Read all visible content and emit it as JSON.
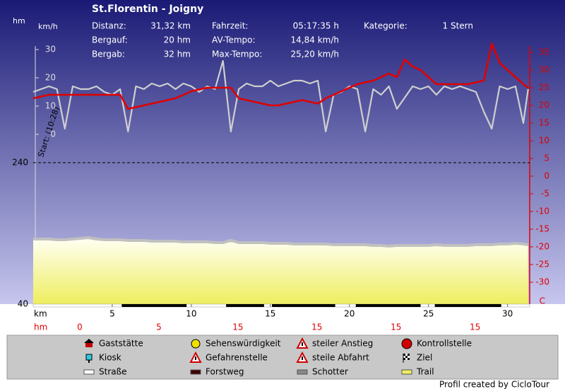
{
  "chart_data": {
    "type": "line",
    "title": "St.Florentin - Joigny",
    "stats": [
      [
        "Distanz:",
        "31,32 km"
      ],
      [
        "Fahrzeit:",
        "05:17:35 h"
      ],
      [
        "Kategorie:",
        "1 Stern"
      ],
      [
        "Bergauf:",
        "20 hm"
      ],
      [
        "AV-Tempo:",
        "14,84 km/h"
      ],
      [
        "Bergab:",
        "32 hm"
      ],
      [
        "Max-Tempo:",
        "25,20 km/h"
      ]
    ],
    "start_label": "Start: (10:28)",
    "x_label": "km",
    "xlim": [
      0,
      31.4
    ],
    "xticks": [
      5,
      10,
      15,
      20,
      25,
      30
    ],
    "y_label": "hm",
    "ylim": [
      40,
      405
    ],
    "yticks": [
      40,
      240
    ],
    "y3_label": "km/h",
    "y3lim": [
      -60,
      31.25
    ],
    "y3ticks": [
      0,
      10,
      20,
      30
    ],
    "y2_label": "C",
    "y2lim": [
      -36.2,
      36.8
    ],
    "y2ticks": [
      35,
      30,
      25,
      20,
      15,
      10,
      5,
      0,
      -5,
      -10,
      -15,
      -20,
      -25,
      -30
    ],
    "climb_label": "hm",
    "climb_values": [
      0,
      5,
      15,
      15,
      15,
      15
    ],
    "x": [
      0,
      0.5,
      1,
      1.5,
      2,
      2.5,
      3,
      3.5,
      4,
      4.5,
      5,
      5.5,
      6,
      6.5,
      7,
      7.5,
      8,
      8.5,
      9,
      9.5,
      10,
      10.5,
      11,
      11.5,
      12,
      12.5,
      13,
      13.5,
      14,
      14.5,
      15,
      15.5,
      16,
      16.5,
      17,
      17.5,
      18,
      18.5,
      19,
      19.5,
      20,
      20.5,
      21,
      21.5,
      22,
      22.5,
      23,
      23.5,
      24,
      24.5,
      25,
      25.5,
      26,
      26.5,
      27,
      27.5,
      28,
      28.5,
      29,
      29.5,
      30,
      30.5,
      31,
      31.3
    ],
    "series": [
      {
        "axis": "y",
        "color": "#c0c0c0",
        "values": [
          132,
          132,
          132,
          131,
          131,
          132,
          133,
          134,
          132,
          131,
          131,
          131,
          130,
          130,
          130,
          129,
          129,
          129,
          129,
          128,
          128,
          128,
          128,
          127,
          127,
          130,
          127,
          127,
          127,
          127,
          126,
          126,
          126,
          125,
          125,
          125,
          125,
          125,
          124,
          124,
          124,
          124,
          124,
          123,
          123,
          122,
          123,
          123,
          123,
          123,
          123,
          124,
          123,
          123,
          123,
          123,
          124,
          124,
          124,
          125,
          125,
          126,
          125,
          124
        ]
      },
      {
        "axis": "y3",
        "color": "#cfcfcf",
        "values": [
          15,
          16,
          17,
          16,
          2,
          17,
          16,
          16,
          17,
          15,
          14,
          16,
          1,
          17,
          16,
          18,
          17,
          18,
          16,
          18,
          17,
          15,
          17,
          16,
          26,
          1,
          16,
          18,
          17,
          17,
          19,
          17,
          18,
          19,
          19,
          18,
          19,
          1,
          14,
          15,
          17,
          16,
          1,
          16,
          14,
          17,
          9,
          13,
          17,
          16,
          17,
          14,
          17,
          16,
          17,
          16,
          15,
          8,
          2,
          17,
          16,
          17,
          4,
          16
        ]
      },
      {
        "axis": "y2",
        "color": "#e00000",
        "values": [
          22,
          22.5,
          23,
          23,
          23,
          23,
          23,
          23,
          23,
          23,
          23,
          23,
          19,
          19.5,
          20,
          20.5,
          21,
          21.5,
          22,
          23,
          24,
          24.5,
          25,
          25,
          25,
          25,
          22,
          21.5,
          21,
          20.5,
          20,
          20,
          20.5,
          21,
          21.5,
          21,
          20.5,
          22,
          23,
          24,
          25,
          26,
          26.5,
          27,
          28,
          29,
          28,
          33,
          31,
          30,
          28,
          26,
          26,
          26,
          26,
          26,
          26.5,
          27,
          37.5,
          32,
          30,
          28,
          26,
          25
        ]
      }
    ],
    "surface": [
      {
        "from": 5.6,
        "to": 9.7
      },
      {
        "from": 12.2,
        "to": 14.6
      },
      {
        "from": 15.1,
        "to": 19.1
      },
      {
        "from": 20.4,
        "to": 24.5
      },
      {
        "from": 25.4,
        "to": 29.6
      }
    ],
    "surface_color": "#000000",
    "legend": [
      "Gaststätte",
      "Sehenswürdigkeit",
      "steiler Anstieg",
      "Kontrollstelle",
      "Kiosk",
      "Gefahrenstelle",
      "steile Abfahrt",
      "Ziel",
      "Straße",
      "Forstweg",
      "Schotter",
      "Trail"
    ],
    "credit": "Profil created by CicloTour"
  }
}
